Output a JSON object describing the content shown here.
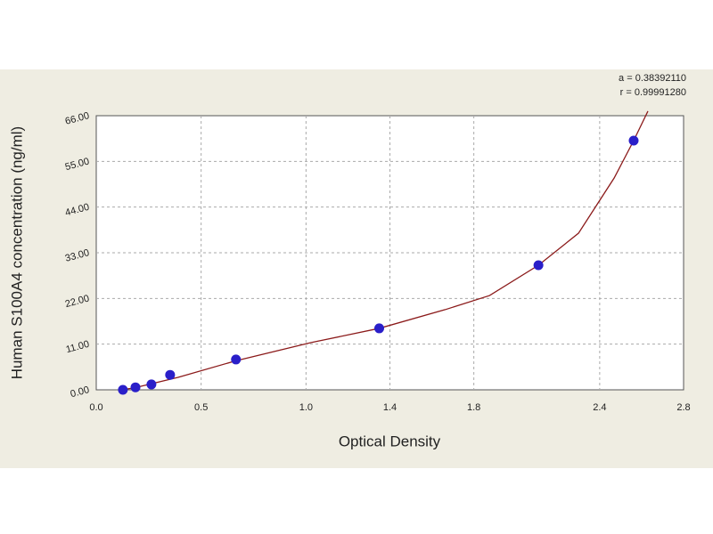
{
  "chart_data": {
    "type": "scatter",
    "x_label": "Optical Density",
    "y_label": "Human S100A4  concentration (ng/ml)",
    "annotations": [
      "a = 0.38392110",
      "r = 0.99991280"
    ],
    "xlim": [
      0,
      2.8
    ],
    "xticks": [
      {
        "value": 0,
        "label": "0.0"
      },
      0.5,
      {
        "value": 1,
        "label": "1.0"
      },
      1.4,
      1.8,
      2.4,
      2.8
    ],
    "ylim": [
      0,
      66
    ],
    "yticks": [
      {
        "value": 0,
        "label": "0.00"
      },
      {
        "value": 11,
        "label": "11.00"
      },
      {
        "value": 22,
        "label": "22.00"
      },
      {
        "value": 33,
        "label": "33.00"
      },
      {
        "value": 44,
        "label": "44.00"
      },
      {
        "value": 55,
        "label": "55.00"
      },
      {
        "value": 66,
        "label": "66.00"
      }
    ],
    "grid": true,
    "series": [
      {
        "color": "#2a1fc9",
        "x": [
          0.127,
          0.187,
          0.263,
          0.352,
          0.666,
          1.349,
          2.108,
          2.562
        ],
        "values": [
          0,
          0.6,
          1.3,
          3.6,
          7.3,
          14.8,
          30.0,
          60.0
        ]
      }
    ],
    "curve": {
      "color": "#8b1a1a",
      "x": [
        0.115,
        0.178,
        0.39,
        0.666,
        1.027,
        1.349,
        1.663,
        1.875,
        2.108,
        2.299,
        2.469,
        2.562,
        2.63
      ],
      "values": [
        0,
        0.43,
        3.0,
        7.0,
        11.4,
        14.8,
        19.3,
        22.7,
        30.0,
        37.7,
        51.0,
        60.0,
        67.1
      ]
    }
  }
}
